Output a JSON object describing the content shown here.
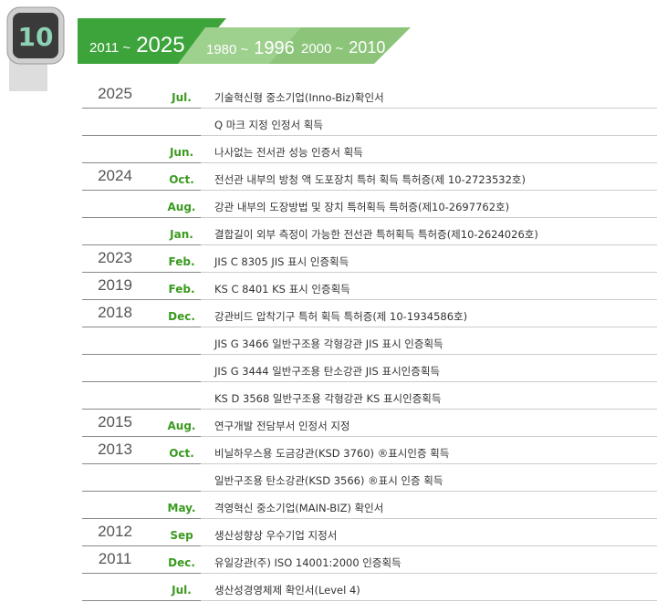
{
  "icon_label": "10",
  "tabs": [
    {
      "from": "2011 ~",
      "to": "2025"
    },
    {
      "from": "1980 ~",
      "to": "1996"
    },
    {
      "from": "2000 ~",
      "to": "2010"
    }
  ],
  "rows": [
    {
      "year": "2025",
      "month": "Jul.",
      "text": "기술혁신형 중소기업(Inno-Biz)확인서"
    },
    {
      "year": null,
      "month": null,
      "text": "Q 마크 지정 인정서 획득"
    },
    {
      "year": null,
      "month": "Jun.",
      "text": "나사없는 전서관 성능 인증서 획득"
    },
    {
      "year": "2024",
      "month": "Oct.",
      "text": "전선관 내부의 방청 액 도포장치 특허 획득 특허증(제 10-2723532호)"
    },
    {
      "year": null,
      "month": "Aug.",
      "text": "강관 내부의 도장방법 및 장치 특허획득 특허증(제10-2697762호)"
    },
    {
      "year": null,
      "month": "Jan.",
      "text": "결합길이 외부 측정이 가능한 전선관 특허획득 특허증(제10-2624026호)"
    },
    {
      "year": "2023",
      "month": "Feb.",
      "text": "JIS C 8305 JIS 표시 인증획득"
    },
    {
      "year": "2019",
      "month": "Feb.",
      "text": "KS C 8401 KS 표시 인증획득"
    },
    {
      "year": "2018",
      "month": "Dec.",
      "text": "강관비드 압착기구 특허 획득 특허증(제 10-1934586호)"
    },
    {
      "year": null,
      "month": null,
      "text": "JIS G 3466 일반구조용 각형강관 JIS 표시 인증획득"
    },
    {
      "year": null,
      "month": null,
      "text": "JIS G 3444 일반구조용 탄소강관 JIS 표시인증획득"
    },
    {
      "year": null,
      "month": null,
      "text": "KS D 3568 일반구조용 각형강관 KS 표시인증획득"
    },
    {
      "year": "2015",
      "month": "Aug.",
      "text": "연구개발 전담부서 인정서 지정"
    },
    {
      "year": "2013",
      "month": "Oct.",
      "text": "비닐하우스용 도금강관(KSD 3760) ®표시인증 획득"
    },
    {
      "year": null,
      "month": null,
      "text": "일반구조용 탄소강관(KSD 3566) ®표시 인증 획득"
    },
    {
      "year": null,
      "month": "May.",
      "text": "격영혁신 중소기업(MAIN-BIZ) 확인서"
    },
    {
      "year": "2012",
      "month": "Sep",
      "text": "생산성향상 우수기업 지정서"
    },
    {
      "year": "2011",
      "month": "Dec.",
      "text": "유일강관(주) ISO 14001:2000 인증획득"
    },
    {
      "year": null,
      "month": "Jul.",
      "text": "생산성경영체제 확인서(Level 4)"
    }
  ]
}
